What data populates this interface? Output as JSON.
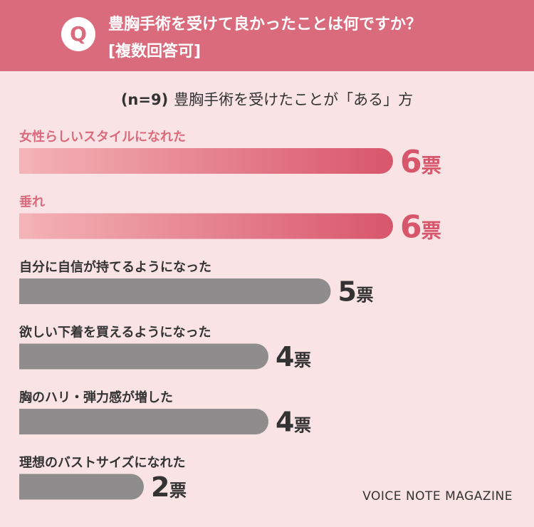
{
  "header": {
    "badge": "Q",
    "question_line1": "豊胸手術を受けて良かったことは何ですか？",
    "question_line2": "[複数回答可]"
  },
  "subtitle": {
    "n_label": "(n=9)",
    "text": "豊胸手術を受けたことが「ある」方"
  },
  "brand": "VOICE NOTE MAGAZINE",
  "colors": {
    "header_bg": "#d96b7c",
    "page_bg": "#f9e3e4",
    "highlight_label": "#d96b7c",
    "highlight_start": "#f4b3b7",
    "highlight_end": "#d8566c",
    "gray_bar": "#8e8c8c",
    "gray_text": "#333333"
  },
  "chart_data": {
    "type": "bar",
    "orientation": "horizontal",
    "unit": "票",
    "xlim": [
      0,
      6
    ],
    "categories": [
      "女性らしいスタイルになれた",
      "垂れ",
      "自分に自信が持てるようになった",
      "欲しい下着を買えるようになった",
      "胸のハリ・弾力感が増した",
      "理想のバストサイズになれた"
    ],
    "values": [
      6,
      6,
      5,
      4,
      4,
      2
    ],
    "highlighted": [
      true,
      true,
      false,
      false,
      false,
      false
    ]
  }
}
